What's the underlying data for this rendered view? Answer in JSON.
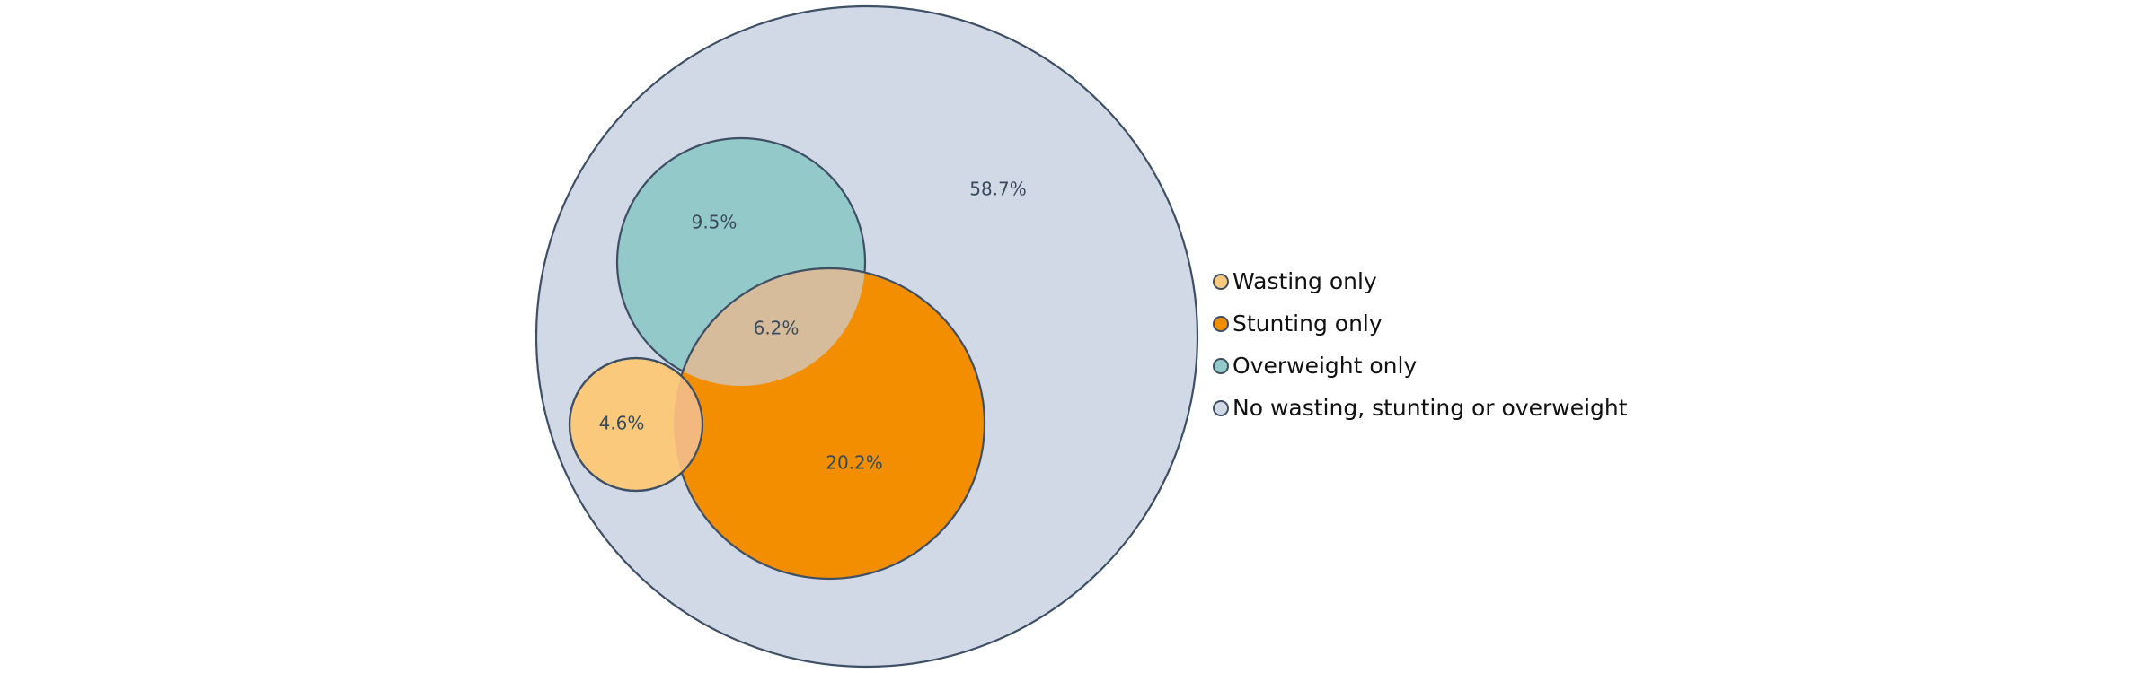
{
  "colors": {
    "outline": "#3f5066",
    "no_condition": "#d0d9e5",
    "overweight": "#94c9c9",
    "stunting": "#f28e00",
    "wasting": "#fbc97b",
    "overweight_stunting_overlap": "#d6bc9a",
    "wasting_stunting_overlap": "#f3b87d"
  },
  "regions": {
    "no_condition": "58.7%",
    "overweight_only": "9.5%",
    "overweight_and_stunting": "6.2%",
    "wasting_only": "4.6%",
    "stunting_only": "20.2%"
  },
  "legend": [
    {
      "label": "Wasting only",
      "color": "#fbc97b"
    },
    {
      "label": "Stunting only",
      "color": "#f28e00"
    },
    {
      "label": "Overweight only",
      "color": "#94c9c9"
    },
    {
      "label": "No wasting, stunting or overweight",
      "color": "#d0d9e5"
    }
  ]
}
